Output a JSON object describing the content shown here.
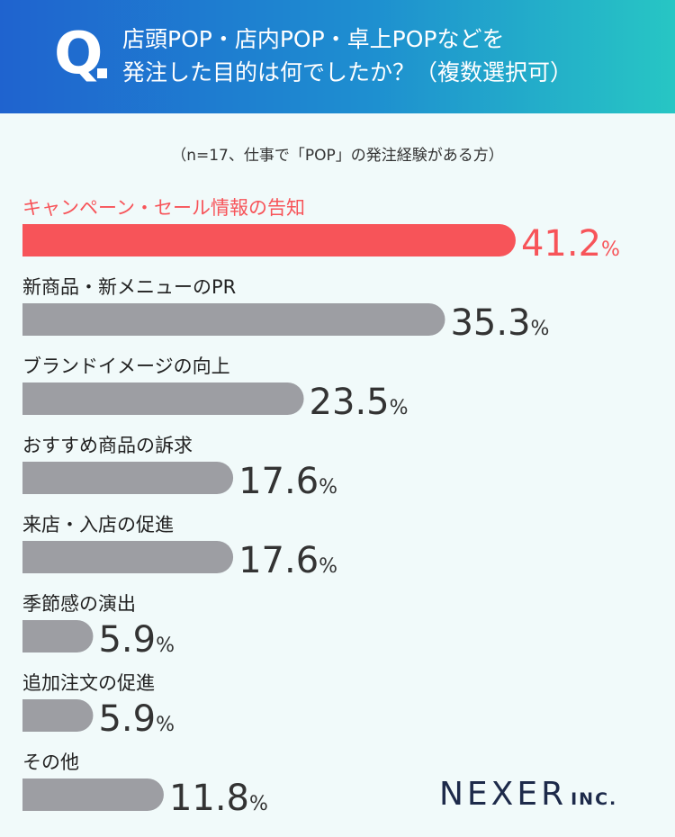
{
  "header": {
    "q_mark": "Q",
    "question_line1": "店頭POP・店内POP・卓上POPなどを",
    "question_line2": "発注した目的は何でしたか？（複数選択可）"
  },
  "note": "（n=17、仕事で「POP」の発注経験がある方）",
  "logo": {
    "main": "NEXER",
    "suffix": "INC."
  },
  "colors": {
    "highlight": "#f75459",
    "bar": "#9d9ea3",
    "value_text": "#333333",
    "label_text": "#222222"
  },
  "chart_data": {
    "type": "bar",
    "orientation": "horizontal",
    "categories": [
      "キャンペーン・セール情報の告知",
      "新商品・新メニューのPR",
      "ブランドイメージの向上",
      "おすすめ商品の訴求",
      "来店・入店の促進",
      "季節感の演出",
      "追加注文の促進",
      "その他"
    ],
    "values": [
      41.2,
      35.3,
      23.5,
      17.6,
      17.6,
      5.9,
      5.9,
      11.8
    ],
    "unit": "%",
    "highlight_index": 0
  }
}
